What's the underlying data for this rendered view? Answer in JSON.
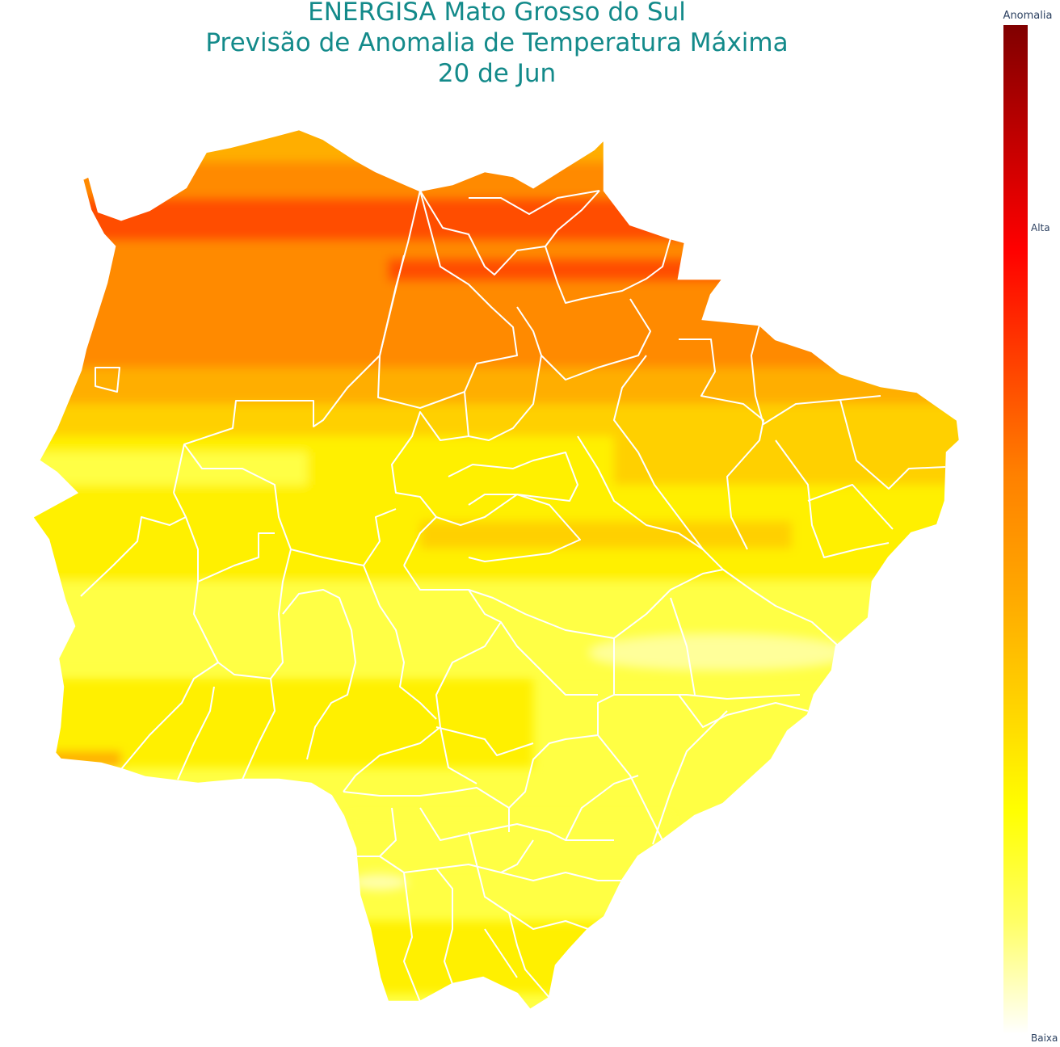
{
  "title": {
    "line1": "ENERGISA Mato Grosso do Sul",
    "line2": "Previsão de Anomalia de Temperatura Máxima",
    "line3": "20 de Jun"
  },
  "colorbar": {
    "title": "Anomalia",
    "tick_high": "Alta",
    "tick_low": "Baixa",
    "stops": [
      "#ffffff",
      "#ffff66",
      "#ffff00",
      "#ffd000",
      "#ffa500",
      "#ff8000",
      "#ff4000",
      "#ff0000",
      "#c00000",
      "#800000"
    ]
  },
  "map": {
    "region": "Mato Grosso do Sul",
    "border_color": "#ffffff",
    "bands": [
      {
        "level": 0.66,
        "color": "#ff4d00"
      },
      {
        "level": 0.55,
        "color": "#ff8a00"
      },
      {
        "level": 0.45,
        "color": "#ffae00"
      },
      {
        "level": 0.35,
        "color": "#ffd200"
      },
      {
        "level": 0.25,
        "color": "#fff000"
      },
      {
        "level": 0.18,
        "color": "#ffff33"
      },
      {
        "level": 0.12,
        "color": "#ffff55"
      }
    ]
  }
}
